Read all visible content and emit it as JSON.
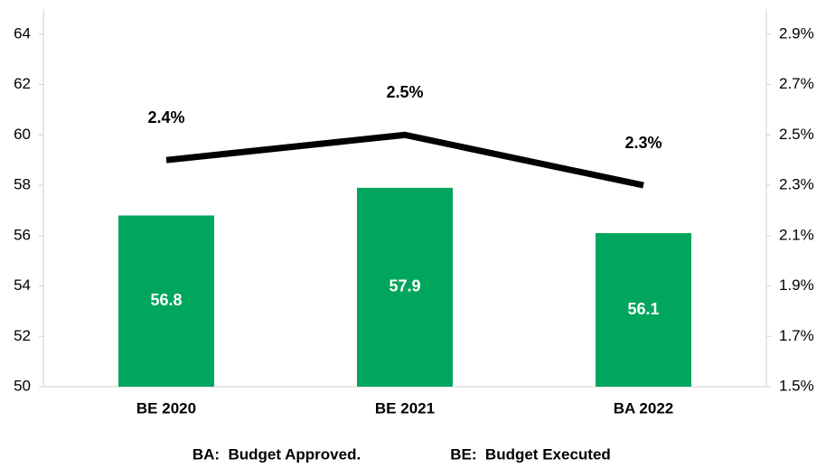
{
  "chart_data": {
    "type": "bar",
    "categories": [
      "BE 2020",
      "BE 2021",
      "BA 2022"
    ],
    "series": [
      {
        "type": "bar",
        "color": "#00a65d",
        "values": [
          56.8,
          57.9,
          56.1
        ]
      },
      {
        "type": "line",
        "axis": "y2",
        "color": "#000000",
        "values": [
          2.4,
          2.5,
          2.3
        ],
        "value_labels": [
          "2.4%",
          "2.5%",
          "2.3%"
        ]
      }
    ],
    "ylim": [
      50,
      65
    ],
    "yticks": [
      50,
      52,
      54,
      56,
      58,
      60,
      62,
      64
    ],
    "y2lim": [
      1.5,
      3.0
    ],
    "y2ticks": [
      {
        "value": 1.5,
        "label": "1.5%"
      },
      {
        "value": 1.7,
        "label": "1.7%"
      },
      {
        "value": 1.9,
        "label": "1.9%"
      },
      {
        "value": 2.1,
        "label": "2.1%"
      },
      {
        "value": 2.3,
        "label": "2.3%"
      },
      {
        "value": 2.5,
        "label": "2.5%"
      },
      {
        "value": 2.7,
        "label": "2.7%"
      },
      {
        "value": 2.9,
        "label": "2.9%"
      }
    ],
    "notes": [
      "BA:  Budget Approved.",
      "BE:  Budget Executed"
    ]
  }
}
